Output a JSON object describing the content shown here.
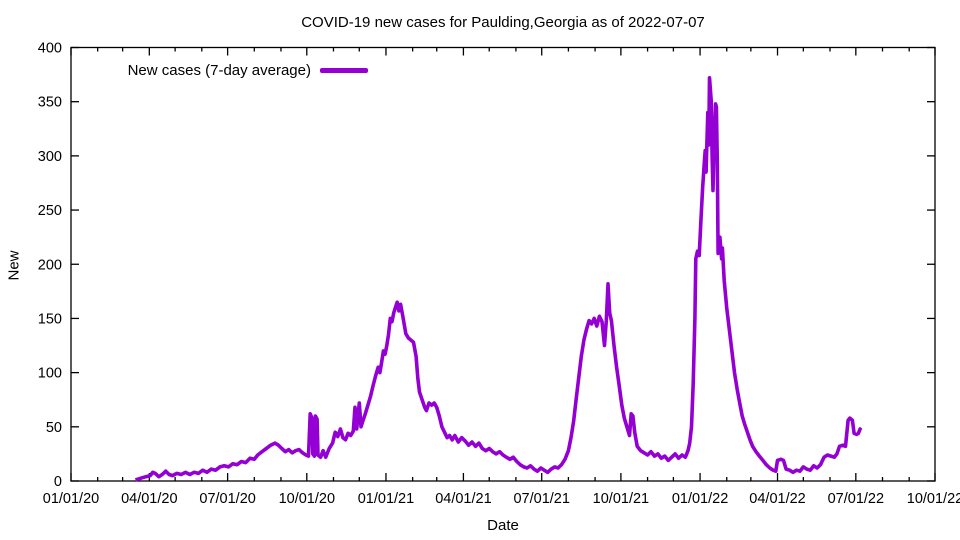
{
  "chart_data": {
    "type": "line",
    "title": "COVID-19 new cases for Paulding,Georgia as of 2022-07-07",
    "xlabel": "Date",
    "ylabel": "New",
    "legend_label": "New cases (7-day average)",
    "line_color": "#9400d3",
    "axis_color": "#000000",
    "background_color": "#ffffff",
    "grid": false,
    "legend_position": "top-left-inside",
    "x_range": [
      "2020-01-01",
      "2022-10-01"
    ],
    "ylim": [
      0,
      400
    ],
    "y_ticks": [
      {
        "value": 0,
        "label": "0"
      },
      {
        "value": 50,
        "label": "50"
      },
      {
        "value": 100,
        "label": "100"
      },
      {
        "value": 150,
        "label": "150"
      },
      {
        "value": 200,
        "label": "200"
      },
      {
        "value": 250,
        "label": "250"
      },
      {
        "value": 300,
        "label": "300"
      },
      {
        "value": 350,
        "label": "350"
      },
      {
        "value": 400,
        "label": "400"
      }
    ],
    "x_ticks": [
      {
        "date": "2020-01-01",
        "label": "01/01/20"
      },
      {
        "date": "2020-04-01",
        "label": "04/01/20"
      },
      {
        "date": "2020-07-01",
        "label": "07/01/20"
      },
      {
        "date": "2020-10-01",
        "label": "10/01/20"
      },
      {
        "date": "2021-01-01",
        "label": "01/01/21"
      },
      {
        "date": "2021-04-01",
        "label": "04/01/21"
      },
      {
        "date": "2021-07-01",
        "label": "07/01/21"
      },
      {
        "date": "2021-10-01",
        "label": "10/01/21"
      },
      {
        "date": "2022-01-01",
        "label": "01/01/22"
      },
      {
        "date": "2022-04-01",
        "label": "04/01/22"
      },
      {
        "date": "2022-07-01",
        "label": "07/01/22"
      },
      {
        "date": "2022-10-01",
        "label": "10/01/22"
      }
    ],
    "minor_x_ticks": "monthly",
    "series": [
      {
        "name": "New cases (7-day average)",
        "points": [
          [
            "2020-03-16",
            1
          ],
          [
            "2020-03-20",
            2
          ],
          [
            "2020-03-24",
            3
          ],
          [
            "2020-03-28",
            4
          ],
          [
            "2020-04-02",
            5
          ],
          [
            "2020-04-05",
            8
          ],
          [
            "2020-04-08",
            7
          ],
          [
            "2020-04-12",
            4
          ],
          [
            "2020-04-16",
            6
          ],
          [
            "2020-04-20",
            9
          ],
          [
            "2020-04-24",
            6
          ],
          [
            "2020-04-28",
            5
          ],
          [
            "2020-05-03",
            7
          ],
          [
            "2020-05-08",
            6
          ],
          [
            "2020-05-13",
            8
          ],
          [
            "2020-05-18",
            6
          ],
          [
            "2020-05-23",
            8
          ],
          [
            "2020-05-28",
            7
          ],
          [
            "2020-06-02",
            10
          ],
          [
            "2020-06-07",
            8
          ],
          [
            "2020-06-12",
            11
          ],
          [
            "2020-06-17",
            10
          ],
          [
            "2020-06-22",
            13
          ],
          [
            "2020-06-27",
            14
          ],
          [
            "2020-07-02",
            13
          ],
          [
            "2020-07-07",
            16
          ],
          [
            "2020-07-12",
            15
          ],
          [
            "2020-07-17",
            18
          ],
          [
            "2020-07-22",
            17
          ],
          [
            "2020-07-27",
            21
          ],
          [
            "2020-08-01",
            20
          ],
          [
            "2020-08-05",
            24
          ],
          [
            "2020-08-10",
            27
          ],
          [
            "2020-08-15",
            30
          ],
          [
            "2020-08-20",
            33
          ],
          [
            "2020-08-25",
            35
          ],
          [
            "2020-08-29",
            33
          ],
          [
            "2020-09-02",
            30
          ],
          [
            "2020-09-06",
            27
          ],
          [
            "2020-09-10",
            29
          ],
          [
            "2020-09-14",
            26
          ],
          [
            "2020-09-18",
            28
          ],
          [
            "2020-09-22",
            29
          ],
          [
            "2020-09-26",
            26
          ],
          [
            "2020-09-30",
            24
          ],
          [
            "2020-10-03",
            23
          ],
          [
            "2020-10-05",
            62
          ],
          [
            "2020-10-07",
            58
          ],
          [
            "2020-10-08",
            25
          ],
          [
            "2020-10-10",
            23
          ],
          [
            "2020-10-11",
            60
          ],
          [
            "2020-10-13",
            57
          ],
          [
            "2020-10-14",
            24
          ],
          [
            "2020-10-17",
            22
          ],
          [
            "2020-10-20",
            28
          ],
          [
            "2020-10-23",
            22
          ],
          [
            "2020-10-27",
            30
          ],
          [
            "2020-10-31",
            35
          ],
          [
            "2020-11-03",
            45
          ],
          [
            "2020-11-06",
            41
          ],
          [
            "2020-11-09",
            48
          ],
          [
            "2020-11-12",
            40
          ],
          [
            "2020-11-15",
            38
          ],
          [
            "2020-11-18",
            44
          ],
          [
            "2020-11-21",
            42
          ],
          [
            "2020-11-24",
            46
          ],
          [
            "2020-11-26",
            68
          ],
          [
            "2020-11-28",
            48
          ],
          [
            "2020-12-01",
            72
          ],
          [
            "2020-12-03",
            50
          ],
          [
            "2020-12-05",
            55
          ],
          [
            "2020-12-08",
            62
          ],
          [
            "2020-12-11",
            70
          ],
          [
            "2020-12-14",
            78
          ],
          [
            "2020-12-17",
            88
          ],
          [
            "2020-12-20",
            97
          ],
          [
            "2020-12-23",
            105
          ],
          [
            "2020-12-25",
            100
          ],
          [
            "2020-12-27",
            110
          ],
          [
            "2020-12-29",
            120
          ],
          [
            "2020-12-31",
            117
          ],
          [
            "2021-01-02",
            125
          ],
          [
            "2021-01-04",
            135
          ],
          [
            "2021-01-06",
            150
          ],
          [
            "2021-01-08",
            147
          ],
          [
            "2021-01-10",
            155
          ],
          [
            "2021-01-12",
            160
          ],
          [
            "2021-01-14",
            165
          ],
          [
            "2021-01-16",
            157
          ],
          [
            "2021-01-18",
            163
          ],
          [
            "2021-01-21",
            150
          ],
          [
            "2021-01-24",
            136
          ],
          [
            "2021-01-27",
            132
          ],
          [
            "2021-01-30",
            130
          ],
          [
            "2021-02-02",
            128
          ],
          [
            "2021-02-05",
            115
          ],
          [
            "2021-02-07",
            95
          ],
          [
            "2021-02-09",
            82
          ],
          [
            "2021-02-12",
            75
          ],
          [
            "2021-02-15",
            68
          ],
          [
            "2021-02-17",
            65
          ],
          [
            "2021-02-20",
            72
          ],
          [
            "2021-02-23",
            70
          ],
          [
            "2021-02-26",
            72
          ],
          [
            "2021-03-01",
            68
          ],
          [
            "2021-03-04",
            60
          ],
          [
            "2021-03-07",
            50
          ],
          [
            "2021-03-10",
            45
          ],
          [
            "2021-03-13",
            40
          ],
          [
            "2021-03-16",
            42
          ],
          [
            "2021-03-19",
            38
          ],
          [
            "2021-03-22",
            42
          ],
          [
            "2021-03-26",
            36
          ],
          [
            "2021-03-30",
            40
          ],
          [
            "2021-04-03",
            37
          ],
          [
            "2021-04-07",
            33
          ],
          [
            "2021-04-11",
            36
          ],
          [
            "2021-04-15",
            32
          ],
          [
            "2021-04-19",
            35
          ],
          [
            "2021-04-23",
            30
          ],
          [
            "2021-04-27",
            28
          ],
          [
            "2021-05-01",
            30
          ],
          [
            "2021-05-05",
            27
          ],
          [
            "2021-05-09",
            25
          ],
          [
            "2021-05-13",
            27
          ],
          [
            "2021-05-17",
            24
          ],
          [
            "2021-05-21",
            22
          ],
          [
            "2021-05-25",
            20
          ],
          [
            "2021-05-29",
            22
          ],
          [
            "2021-06-02",
            18
          ],
          [
            "2021-06-06",
            15
          ],
          [
            "2021-06-10",
            13
          ],
          [
            "2021-06-14",
            12
          ],
          [
            "2021-06-18",
            14
          ],
          [
            "2021-06-22",
            11
          ],
          [
            "2021-06-26",
            9
          ],
          [
            "2021-06-30",
            12
          ],
          [
            "2021-07-04",
            10
          ],
          [
            "2021-07-08",
            8
          ],
          [
            "2021-07-12",
            11
          ],
          [
            "2021-07-16",
            13
          ],
          [
            "2021-07-20",
            12
          ],
          [
            "2021-07-24",
            15
          ],
          [
            "2021-07-28",
            20
          ],
          [
            "2021-08-01",
            28
          ],
          [
            "2021-08-04",
            40
          ],
          [
            "2021-08-07",
            55
          ],
          [
            "2021-08-10",
            75
          ],
          [
            "2021-08-13",
            95
          ],
          [
            "2021-08-16",
            115
          ],
          [
            "2021-08-19",
            130
          ],
          [
            "2021-08-22",
            140
          ],
          [
            "2021-08-25",
            148
          ],
          [
            "2021-08-28",
            145
          ],
          [
            "2021-08-31",
            150
          ],
          [
            "2021-09-03",
            143
          ],
          [
            "2021-09-06",
            152
          ],
          [
            "2021-09-09",
            147
          ],
          [
            "2021-09-12",
            125
          ],
          [
            "2021-09-14",
            148
          ],
          [
            "2021-09-16",
            182
          ],
          [
            "2021-09-18",
            155
          ],
          [
            "2021-09-20",
            148
          ],
          [
            "2021-09-23",
            125
          ],
          [
            "2021-09-26",
            105
          ],
          [
            "2021-09-29",
            88
          ],
          [
            "2021-10-02",
            70
          ],
          [
            "2021-10-05",
            58
          ],
          [
            "2021-10-08",
            50
          ],
          [
            "2021-10-11",
            42
          ],
          [
            "2021-10-13",
            62
          ],
          [
            "2021-10-15",
            60
          ],
          [
            "2021-10-17",
            45
          ],
          [
            "2021-10-20",
            32
          ],
          [
            "2021-10-24",
            28
          ],
          [
            "2021-10-28",
            26
          ],
          [
            "2021-11-01",
            24
          ],
          [
            "2021-11-05",
            27
          ],
          [
            "2021-11-09",
            23
          ],
          [
            "2021-11-13",
            25
          ],
          [
            "2021-11-17",
            21
          ],
          [
            "2021-11-21",
            23
          ],
          [
            "2021-11-25",
            19
          ],
          [
            "2021-11-29",
            22
          ],
          [
            "2021-12-03",
            25
          ],
          [
            "2021-12-07",
            21
          ],
          [
            "2021-12-11",
            24
          ],
          [
            "2021-12-15",
            22
          ],
          [
            "2021-12-18",
            28
          ],
          [
            "2021-12-20",
            35
          ],
          [
            "2021-12-22",
            50
          ],
          [
            "2021-12-24",
            90
          ],
          [
            "2021-12-26",
            150
          ],
          [
            "2021-12-27",
            205
          ],
          [
            "2021-12-29",
            212
          ],
          [
            "2021-12-31",
            208
          ],
          [
            "2022-01-02",
            240
          ],
          [
            "2022-01-04",
            270
          ],
          [
            "2022-01-06",
            295
          ],
          [
            "2022-01-07",
            305
          ],
          [
            "2022-01-08",
            285
          ],
          [
            "2022-01-09",
            315
          ],
          [
            "2022-01-10",
            340
          ],
          [
            "2022-01-11",
            310
          ],
          [
            "2022-01-12",
            372
          ],
          [
            "2022-01-14",
            350
          ],
          [
            "2022-01-15",
            300
          ],
          [
            "2022-01-16",
            268
          ],
          [
            "2022-01-17",
            300
          ],
          [
            "2022-01-19",
            348
          ],
          [
            "2022-01-20",
            345
          ],
          [
            "2022-01-21",
            295
          ],
          [
            "2022-01-22",
            210
          ],
          [
            "2022-01-24",
            225
          ],
          [
            "2022-01-26",
            205
          ],
          [
            "2022-01-27",
            215
          ],
          [
            "2022-01-29",
            185
          ],
          [
            "2022-02-01",
            160
          ],
          [
            "2022-02-04",
            140
          ],
          [
            "2022-02-07",
            120
          ],
          [
            "2022-02-10",
            100
          ],
          [
            "2022-02-13",
            85
          ],
          [
            "2022-02-16",
            72
          ],
          [
            "2022-02-19",
            60
          ],
          [
            "2022-02-22",
            52
          ],
          [
            "2022-02-25",
            45
          ],
          [
            "2022-02-28",
            38
          ],
          [
            "2022-03-03",
            32
          ],
          [
            "2022-03-07",
            27
          ],
          [
            "2022-03-11",
            23
          ],
          [
            "2022-03-15",
            19
          ],
          [
            "2022-03-19",
            15
          ],
          [
            "2022-03-23",
            12
          ],
          [
            "2022-03-27",
            10
          ],
          [
            "2022-03-30",
            9
          ],
          [
            "2022-04-01",
            19
          ],
          [
            "2022-04-05",
            20
          ],
          [
            "2022-04-08",
            19
          ],
          [
            "2022-04-11",
            11
          ],
          [
            "2022-04-15",
            10
          ],
          [
            "2022-04-19",
            8
          ],
          [
            "2022-04-23",
            10
          ],
          [
            "2022-04-27",
            9
          ],
          [
            "2022-05-01",
            13
          ],
          [
            "2022-05-05",
            11
          ],
          [
            "2022-05-09",
            10
          ],
          [
            "2022-05-13",
            14
          ],
          [
            "2022-05-17",
            12
          ],
          [
            "2022-05-21",
            15
          ],
          [
            "2022-05-25",
            22
          ],
          [
            "2022-05-29",
            24
          ],
          [
            "2022-06-02",
            23
          ],
          [
            "2022-06-06",
            22
          ],
          [
            "2022-06-09",
            25
          ],
          [
            "2022-06-12",
            32
          ],
          [
            "2022-06-16",
            33
          ],
          [
            "2022-06-19",
            32
          ],
          [
            "2022-06-22",
            56
          ],
          [
            "2022-06-24",
            58
          ],
          [
            "2022-06-27",
            56
          ],
          [
            "2022-06-29",
            44
          ],
          [
            "2022-07-02",
            43
          ],
          [
            "2022-07-04",
            44
          ],
          [
            "2022-07-06",
            48
          ],
          [
            "2022-07-07",
            47
          ]
        ]
      }
    ]
  }
}
